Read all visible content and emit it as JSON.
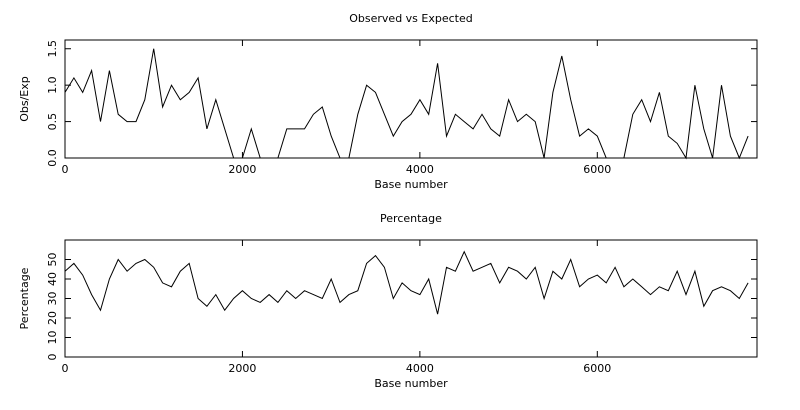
{
  "chart_data": [
    {
      "type": "line",
      "title": "Observed vs Expected",
      "xlabel": "Base number",
      "ylabel": "Obs/Exp",
      "xlim": [
        0,
        7800
      ],
      "xticks": [
        0,
        2000,
        4000,
        6000
      ],
      "ylim": [
        0,
        1.62
      ],
      "yticks": [
        {
          "value": 0,
          "label": "0.0"
        },
        0.5,
        {
          "value": 1,
          "label": "1.0"
        },
        1.5
      ],
      "series": [
        {
          "color": "#000000",
          "x": [
            0,
            100,
            200,
            300,
            400,
            500,
            600,
            700,
            800,
            900,
            1000,
            1100,
            1200,
            1300,
            1400,
            1500,
            1600,
            1700,
            1800,
            1900,
            2000,
            2100,
            2200,
            2300,
            2400,
            2500,
            2600,
            2700,
            2800,
            2900,
            3000,
            3100,
            3200,
            3300,
            3400,
            3500,
            3600,
            3700,
            3800,
            3900,
            4000,
            4100,
            4200,
            4300,
            4400,
            4500,
            4600,
            4700,
            4800,
            4900,
            5000,
            5100,
            5200,
            5300,
            5400,
            5500,
            5600,
            5700,
            5800,
            5900,
            6000,
            6100,
            6200,
            6300,
            6400,
            6500,
            6600,
            6700,
            6800,
            6900,
            7000,
            7100,
            7200,
            7300,
            7400,
            7500,
            7600,
            7700
          ],
          "values": [
            0.9,
            1.1,
            0.9,
            1.2,
            0.5,
            1.2,
            0.6,
            0.5,
            0.5,
            0.8,
            1.5,
            0.7,
            1.0,
            0.8,
            0.9,
            1.1,
            0.4,
            0.8,
            0.4,
            0,
            0,
            0.4,
            0,
            0,
            0,
            0.4,
            0.4,
            0.4,
            0.6,
            0.7,
            0.3,
            0,
            0,
            0.6,
            1.0,
            0.9,
            0.6,
            0.3,
            0.5,
            0.6,
            0.8,
            0.6,
            1.3,
            0.3,
            0.6,
            0.5,
            0.4,
            0.6,
            0.4,
            0.3,
            0.8,
            0.5,
            0.6,
            0.5,
            0,
            0.9,
            1.4,
            0.8,
            0.3,
            0.4,
            0.3,
            0,
            0,
            0,
            0.6,
            0.8,
            0.5,
            0.9,
            0.3,
            0.2,
            0,
            1.0,
            0.4,
            0,
            1.0,
            0.3,
            0,
            0.3
          ]
        }
      ]
    },
    {
      "type": "line",
      "title": "Percentage",
      "xlabel": "Base number",
      "ylabel": "Percentage",
      "xlim": [
        0,
        7800
      ],
      "xticks": [
        0,
        2000,
        4000,
        6000
      ],
      "ylim": [
        0,
        60
      ],
      "yticks": [
        0,
        10,
        20,
        30,
        40,
        50
      ],
      "series": [
        {
          "color": "#000000",
          "x": [
            0,
            100,
            200,
            300,
            400,
            500,
            600,
            700,
            800,
            900,
            1000,
            1100,
            1200,
            1300,
            1400,
            1500,
            1600,
            1700,
            1800,
            1900,
            2000,
            2100,
            2200,
            2300,
            2400,
            2500,
            2600,
            2700,
            2800,
            2900,
            3000,
            3100,
            3200,
            3300,
            3400,
            3500,
            3600,
            3700,
            3800,
            3900,
            4000,
            4100,
            4200,
            4300,
            4400,
            4500,
            4600,
            4700,
            4800,
            4900,
            5000,
            5100,
            5200,
            5300,
            5400,
            5500,
            5600,
            5700,
            5800,
            5900,
            6000,
            6100,
            6200,
            6300,
            6400,
            6500,
            6600,
            6700,
            6800,
            6900,
            7000,
            7100,
            7200,
            7300,
            7400,
            7500,
            7600,
            7700
          ],
          "values": [
            44,
            48,
            42,
            32,
            24,
            40,
            50,
            44,
            48,
            50,
            46,
            38,
            36,
            44,
            48,
            30,
            26,
            32,
            24,
            30,
            34,
            30,
            28,
            32,
            28,
            34,
            30,
            34,
            32,
            30,
            40,
            28,
            32,
            34,
            48,
            52,
            46,
            30,
            38,
            34,
            32,
            40,
            22,
            46,
            44,
            54,
            44,
            46,
            48,
            38,
            46,
            44,
            40,
            46,
            30,
            44,
            40,
            50,
            36,
            40,
            42,
            38,
            46,
            36,
            40,
            36,
            32,
            36,
            34,
            44,
            32,
            44,
            26,
            34,
            36,
            34,
            30,
            38
          ]
        }
      ]
    }
  ]
}
